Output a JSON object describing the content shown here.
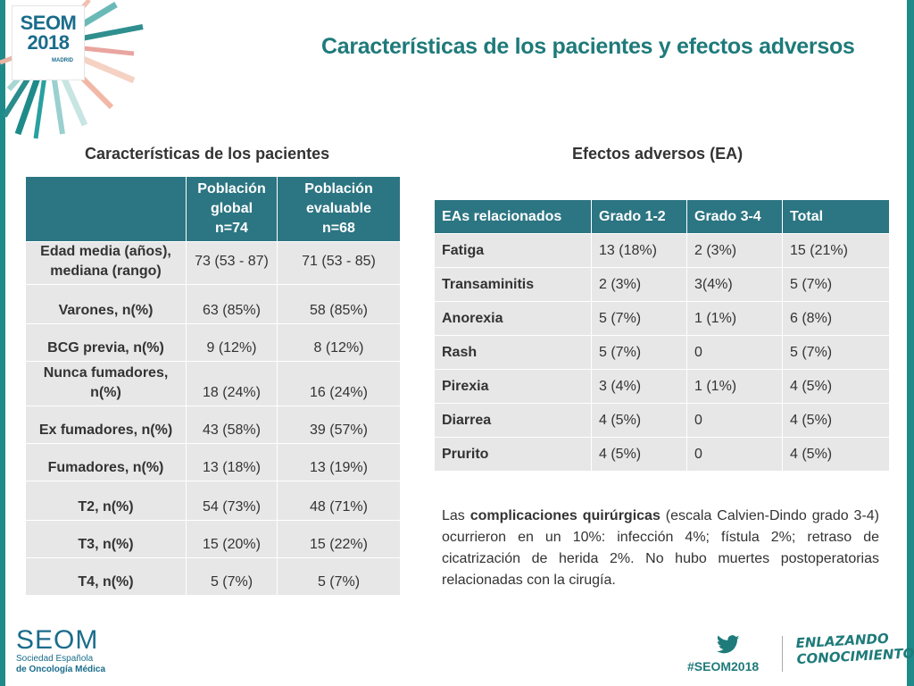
{
  "logo": {
    "name": "SEOM",
    "year": "2018",
    "city": "MADRID"
  },
  "title": "Características de los pacientes y efectos adversos",
  "left_section": {
    "heading": "Características de los pacientes",
    "columns": [
      "",
      "Población global n=74",
      "Población evaluable n=68"
    ],
    "col1_lines": [
      "Población",
      "global",
      "n=74"
    ],
    "col2_lines": [
      "Población",
      "evaluable",
      "n=68"
    ],
    "rows": [
      {
        "label": "Edad media (años), mediana (rango)",
        "global": "73 (53 - 87)",
        "evaluable": "71 (53 - 85)"
      },
      {
        "label": "Varones, n(%)",
        "global": "63 (85%)",
        "evaluable": "58 (85%)"
      },
      {
        "label": "BCG previa, n(%)",
        "global": "9 (12%)",
        "evaluable": "8 (12%)"
      },
      {
        "label": "Nunca fumadores, n(%)",
        "global": "18 (24%)",
        "evaluable": "16 (24%)"
      },
      {
        "label": "Ex fumadores, n(%)",
        "global": "43 (58%)",
        "evaluable": "39 (57%)"
      },
      {
        "label": "Fumadores, n(%)",
        "global": "13 (18%)",
        "evaluable": "13 (19%)"
      },
      {
        "label": "T2, n(%)",
        "global": "54 (73%)",
        "evaluable": "48 (71%)"
      },
      {
        "label": "T3, n(%)",
        "global": "15 (20%)",
        "evaluable": "15 (22%)"
      },
      {
        "label": "T4, n(%)",
        "global": "5 (7%)",
        "evaluable": "5 (7%)"
      }
    ]
  },
  "right_section": {
    "heading": "Efectos adversos (EA)",
    "columns": [
      "EAs relacionados",
      "Grado 1-2",
      "Grado 3-4",
      "Total"
    ],
    "rows": [
      {
        "label": "Fatiga",
        "g12": "13 (18%)",
        "g34": "2 (3%)",
        "total": "15 (21%)"
      },
      {
        "label": "Transaminitis",
        "g12": "2 (3%)",
        "g34": "3(4%)",
        "total": "5 (7%)"
      },
      {
        "label": "Anorexia",
        "g12": "5 (7%)",
        "g34": "1 (1%)",
        "total": "6 (8%)"
      },
      {
        "label": "Rash",
        "g12": "5 (7%)",
        "g34": "0",
        "total": "5 (7%)"
      },
      {
        "label": "Pirexia",
        "g12": "3 (4%)",
        "g34": "1 (1%)",
        "total": "4 (5%)"
      },
      {
        "label": "Diarrea",
        "g12": "4 (5%)",
        "g34": "0",
        "total": "4 (5%)"
      },
      {
        "label": "Prurito",
        "g12": "4 (5%)",
        "g34": "0",
        "total": "4 (5%)"
      }
    ]
  },
  "paragraph": {
    "prefix": "Las ",
    "bold": "complicaciones quirúrgicas",
    "suffix": " (escala Calvien-Dindo grado 3-4) ocurrieron en un 10%: infección 4%; fístula 2%; retraso de cicatrización de herida 2%. No hubo muertes postoperatorias relacionadas con la cirugía."
  },
  "footer": {
    "org_name": "SEOM",
    "org_line1": "Sociedad Española",
    "org_line2": "de Oncología Médica",
    "hashtag": "#SEOM2018",
    "slogan_line1": "ENLAZANDO",
    "slogan_line2": "CONOCIMIENTO",
    "twitter_icon": "twitter-bird-icon"
  },
  "colors": {
    "accent": "#1f7a7a",
    "header_fill": "#2c7582",
    "cell_fill": "#e7e7e7"
  }
}
